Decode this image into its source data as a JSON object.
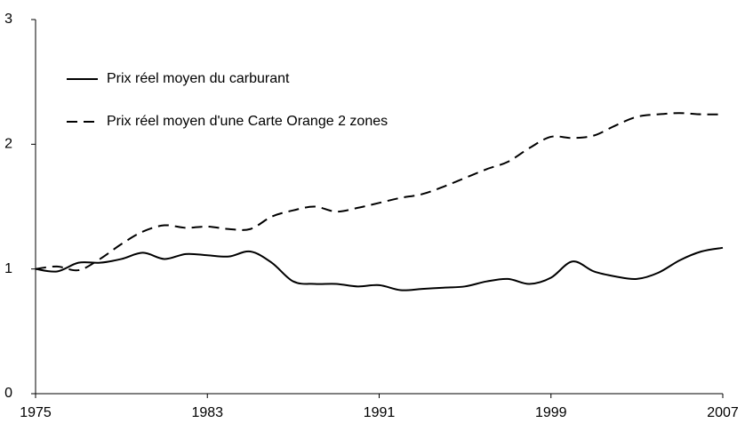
{
  "chart_data": {
    "type": "line",
    "x": [
      1975,
      1976,
      1977,
      1978,
      1979,
      1980,
      1981,
      1982,
      1983,
      1984,
      1985,
      1986,
      1987,
      1988,
      1989,
      1990,
      1991,
      1992,
      1993,
      1994,
      1995,
      1996,
      1997,
      1998,
      1999,
      2000,
      2001,
      2002,
      2003,
      2004,
      2005,
      2006,
      2007
    ],
    "series": [
      {
        "name": "Prix réel moyen du carburant",
        "color": "#000000",
        "dashed": false,
        "values": [
          1.0,
          0.98,
          1.05,
          1.05,
          1.08,
          1.13,
          1.08,
          1.12,
          1.11,
          1.1,
          1.14,
          1.05,
          0.9,
          0.88,
          0.88,
          0.86,
          0.87,
          0.83,
          0.84,
          0.85,
          0.86,
          0.9,
          0.92,
          0.88,
          0.93,
          1.06,
          0.98,
          0.94,
          0.92,
          0.97,
          1.07,
          1.14,
          1.17
        ]
      },
      {
        "name": "Prix réel moyen d'une Carte Orange 2 zones",
        "color": "#000000",
        "dashed": true,
        "values": [
          1.0,
          1.02,
          0.99,
          1.08,
          1.2,
          1.3,
          1.35,
          1.33,
          1.34,
          1.32,
          1.32,
          1.42,
          1.47,
          1.5,
          1.46,
          1.49,
          1.53,
          1.57,
          1.6,
          1.66,
          1.73,
          1.8,
          1.86,
          1.97,
          2.06,
          2.05,
          2.07,
          2.15,
          2.22,
          2.24,
          2.25,
          2.24,
          2.24
        ]
      }
    ],
    "xlim": [
      1975,
      2007
    ],
    "xticks": [
      1975,
      1983,
      1991,
      1999,
      2007
    ],
    "ylim": [
      0,
      3
    ],
    "yticks": [
      0,
      1,
      2,
      3
    ],
    "grid": false,
    "legend": "upper left"
  }
}
